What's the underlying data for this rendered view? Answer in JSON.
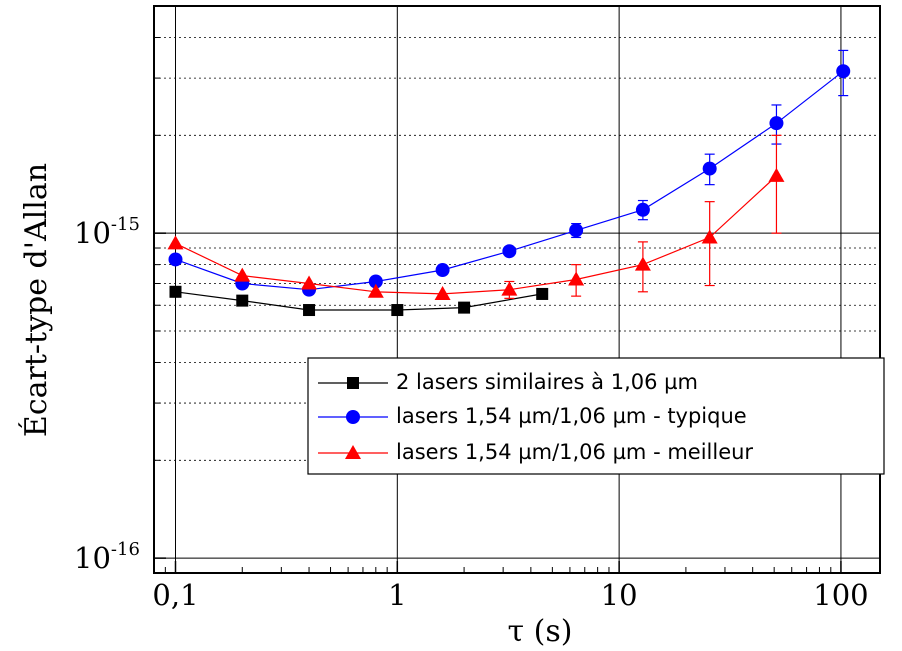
{
  "chart_data": {
    "type": "scatter",
    "xlabel": "τ (s)",
    "ylabel": "Écart-type d'Allan",
    "xscale": "log",
    "yscale": "log",
    "xlim": [
      0.08,
      150
    ],
    "ylim": [
      9e-17,
      5e-15
    ],
    "grid": true,
    "legend_position": "bottom-right",
    "x_ticks": [
      {
        "value": 0.1,
        "label": "0,1"
      },
      {
        "value": 1,
        "label": "1"
      },
      {
        "value": 10,
        "label": "10"
      },
      {
        "value": 100,
        "label": "100"
      }
    ],
    "y_ticks": [
      {
        "value": 1e-16,
        "base": "10",
        "exp": "-16"
      },
      {
        "value": 1e-15,
        "base": "10",
        "exp": "-15"
      }
    ],
    "series": [
      {
        "name": "2 lasers similaires à 1,06 µm",
        "color": "#000000",
        "marker": "square",
        "x": [
          0.1,
          0.2,
          0.4,
          1,
          2,
          4.5
        ],
        "y": [
          6.6e-16,
          6.2e-16,
          5.8e-16,
          5.8e-16,
          5.9e-16,
          6.5e-16
        ],
        "err": [
          0,
          0,
          0,
          0,
          0,
          0
        ]
      },
      {
        "name": "lasers 1,54 µm/1,06 µm - typique",
        "color": "#0000ff",
        "marker": "circle",
        "x": [
          0.1,
          0.2,
          0.4,
          0.8,
          1.6,
          3.2,
          6.4,
          12.8,
          25.6,
          51.2,
          102.4
        ],
        "y": [
          8.3e-16,
          7e-16,
          6.7e-16,
          7.1e-16,
          7.7e-16,
          8.8e-16,
          1.02e-15,
          1.18e-15,
          1.58e-15,
          2.18e-15,
          3.15e-15
        ],
        "err": [
          0,
          0,
          0,
          0,
          0,
          0,
          5e-17,
          8e-17,
          1.7e-16,
          3e-16,
          5e-16
        ]
      },
      {
        "name": "lasers 1,54 µm/1,06 µm - meilleur",
        "color": "#ff0000",
        "marker": "triangle",
        "x": [
          0.1,
          0.2,
          0.4,
          0.8,
          1.6,
          3.2,
          6.4,
          12.8,
          25.6,
          51.2
        ],
        "y": [
          9.3e-16,
          7.4e-16,
          7e-16,
          6.6e-16,
          6.5e-16,
          6.7e-16,
          7.2e-16,
          8e-16,
          9.7e-16,
          1.5e-15
        ],
        "err": [
          0,
          0,
          0,
          0,
          0,
          4e-17,
          8e-17,
          1.4e-16,
          2.8e-16,
          5e-16
        ]
      }
    ]
  }
}
